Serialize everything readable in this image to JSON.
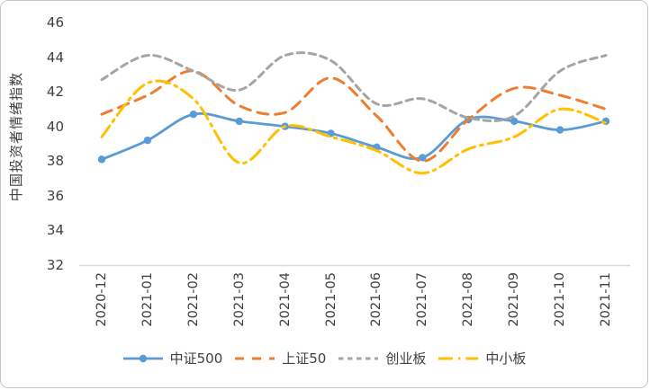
{
  "figure": {
    "background": "#ffffff",
    "border_color": "#c6c6c6"
  },
  "chart_data": {
    "type": "line",
    "title": "",
    "xlabel": "",
    "ylabel": "中国投资者情绪指数",
    "ylim": [
      32,
      46
    ],
    "yticks": [
      46,
      44,
      42,
      40,
      38,
      36,
      34,
      32
    ],
    "grid": false,
    "smoothed_lines": true,
    "legend_position": "bottom",
    "axis_line_color": "#d9d9d9",
    "categories": [
      "2020-12",
      "2021-01",
      "2021-02",
      "2021-03",
      "2021-04",
      "2021-05",
      "2021-06",
      "2021-07",
      "2021-08",
      "2021-09",
      "2021-10",
      "2021-11"
    ],
    "series": [
      {
        "name": "中证500",
        "color": "#5b9bd5",
        "style": "solid",
        "marker": "circle",
        "values": [
          38.1,
          39.2,
          40.7,
          40.3,
          40.0,
          39.6,
          38.8,
          38.2,
          40.4,
          40.3,
          39.8,
          40.3
        ]
      },
      {
        "name": "上证50",
        "color": "#ed7d31",
        "style": "dashed-long",
        "marker": "none",
        "values": [
          40.7,
          41.8,
          43.2,
          41.2,
          40.8,
          42.8,
          40.6,
          38.0,
          40.4,
          42.2,
          41.8,
          41.0
        ]
      },
      {
        "name": "创业板",
        "color": "#a5a5a5",
        "style": "dashed",
        "marker": "none",
        "values": [
          42.7,
          44.1,
          43.2,
          42.1,
          44.1,
          43.8,
          41.3,
          41.6,
          40.5,
          40.6,
          43.2,
          44.1
        ]
      },
      {
        "name": "中小板",
        "color": "#ffc000",
        "style": "dash-dot",
        "marker": "none",
        "values": [
          39.4,
          42.5,
          41.6,
          37.9,
          40.0,
          39.4,
          38.6,
          37.3,
          38.7,
          39.4,
          41.0,
          40.2
        ]
      }
    ]
  }
}
